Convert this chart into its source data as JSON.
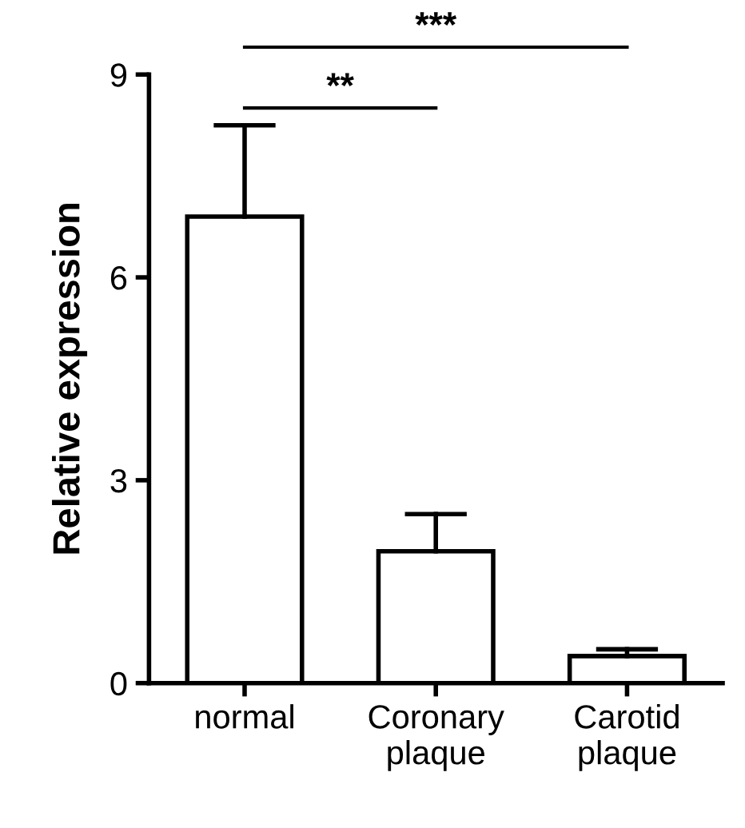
{
  "chart_data": {
    "type": "bar",
    "ylabel": "Relative expression",
    "categories": [
      "normal",
      "Coronary\nplaque",
      "Carotid\nplaque"
    ],
    "values": [
      6.9,
      1.95,
      0.4
    ],
    "color": "#ffffff",
    "errors": [
      [
        6.9,
        8.25
      ],
      [
        1.95,
        2.5
      ],
      [
        0.4,
        0.5
      ]
    ],
    "ylim": [
      0,
      9
    ],
    "yticks": [
      0,
      3,
      6,
      9
    ],
    "grid": false,
    "legend": false,
    "annotations": [
      "**",
      "***"
    ]
  }
}
